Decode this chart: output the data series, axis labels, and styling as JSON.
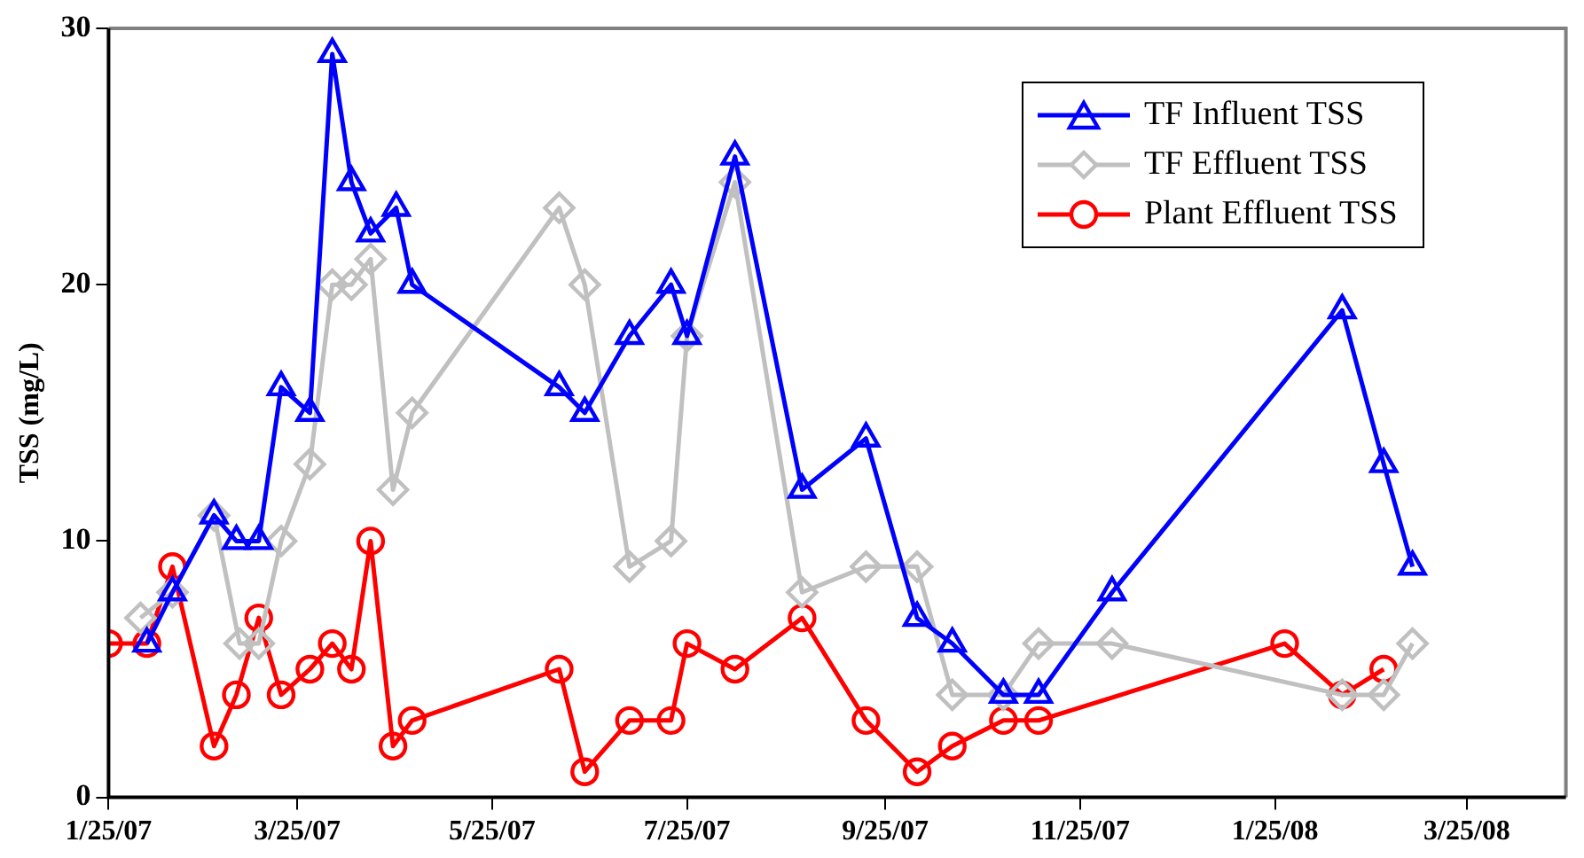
{
  "chart_data": {
    "type": "line",
    "ylabel": "TSS (mg/L)",
    "xlim": [
      "2007-01-25",
      "2008-04-25"
    ],
    "xticks": [
      {
        "value": "2007-01-25",
        "label": "1/25/07"
      },
      {
        "value": "2007-03-25",
        "label": "3/25/07"
      },
      {
        "value": "2007-05-25",
        "label": "5/25/07"
      },
      {
        "value": "2007-07-25",
        "label": "7/25/07"
      },
      {
        "value": "2007-09-25",
        "label": "9/25/07"
      },
      {
        "value": "2007-11-25",
        "label": "11/25/07"
      },
      {
        "value": "2008-01-25",
        "label": "1/25/08"
      },
      {
        "value": "2008-03-25",
        "label": "3/25/08"
      }
    ],
    "ylim": [
      0,
      30
    ],
    "yticks": [
      0,
      10,
      20,
      30
    ],
    "grid": false,
    "legend": "top right",
    "line_style": "solid",
    "series": [
      {
        "name": "TF Influent TSS",
        "color": "#0000ff",
        "marker": "triangle",
        "x": [
          "2007-02-06",
          "2007-02-14",
          "2007-02-27",
          "2007-03-06",
          "2007-03-13",
          "2007-03-20",
          "2007-03-29",
          "2007-04-05",
          "2007-04-11",
          "2007-04-17",
          "2007-04-25",
          "2007-04-30",
          "2007-06-15",
          "2007-06-23",
          "2007-07-07",
          "2007-07-20",
          "2007-07-25",
          "2007-08-09",
          "2007-08-30",
          "2007-09-19",
          "2007-10-05",
          "2007-10-16",
          "2007-11-01",
          "2007-11-12",
          "2007-12-05",
          "2008-02-15",
          "2008-02-28",
          "2008-03-08"
        ],
        "values": [
          6,
          8,
          11,
          10,
          10,
          16,
          15,
          29,
          24,
          22,
          23,
          20,
          16,
          15,
          18,
          20,
          18,
          25,
          12,
          14,
          7,
          6,
          4,
          4,
          8,
          19,
          13,
          9
        ]
      },
      {
        "name": "TF Effluent TSS",
        "color": "#c0c0c0",
        "marker": "diamond",
        "x": [
          "2007-02-04",
          "2007-02-14",
          "2007-02-27",
          "2007-03-07",
          "2007-03-13",
          "2007-03-20",
          "2007-03-29",
          "2007-04-05",
          "2007-04-11",
          "2007-04-17",
          "2007-04-24",
          "2007-04-30",
          "2007-06-15",
          "2007-06-23",
          "2007-07-07",
          "2007-07-20",
          "2007-07-25",
          "2007-08-09",
          "2007-08-30",
          "2007-09-19",
          "2007-10-05",
          "2007-10-16",
          "2007-11-01",
          "2007-11-12",
          "2007-12-05",
          "2008-02-15",
          "2008-02-28",
          "2008-03-08"
        ],
        "values": [
          7,
          8,
          11,
          6,
          6,
          10,
          13,
          20,
          20,
          21,
          12,
          15,
          23,
          20,
          9,
          10,
          18,
          24,
          8,
          9,
          9,
          4,
          4,
          6,
          6,
          4,
          4,
          6
        ]
      },
      {
        "name": "Plant Effluent TSS",
        "color": "#ff0000",
        "marker": "circle",
        "x": [
          "2007-01-25",
          "2007-02-06",
          "2007-02-14",
          "2007-02-27",
          "2007-03-06",
          "2007-03-13",
          "2007-03-20",
          "2007-03-29",
          "2007-04-05",
          "2007-04-11",
          "2007-04-17",
          "2007-04-24",
          "2007-04-30",
          "2007-06-15",
          "2007-06-23",
          "2007-07-07",
          "2007-07-20",
          "2007-07-25",
          "2007-08-09",
          "2007-08-30",
          "2007-09-19",
          "2007-10-05",
          "2007-10-16",
          "2007-11-01",
          "2007-11-12",
          "2008-01-28",
          "2008-02-15",
          "2008-02-28"
        ],
        "values": [
          6,
          6,
          9,
          2,
          4,
          7,
          4,
          5,
          6,
          5,
          10,
          2,
          3,
          5,
          1,
          3,
          3,
          6,
          5,
          7,
          3,
          1,
          2,
          3,
          3,
          6,
          4,
          5
        ]
      }
    ]
  }
}
